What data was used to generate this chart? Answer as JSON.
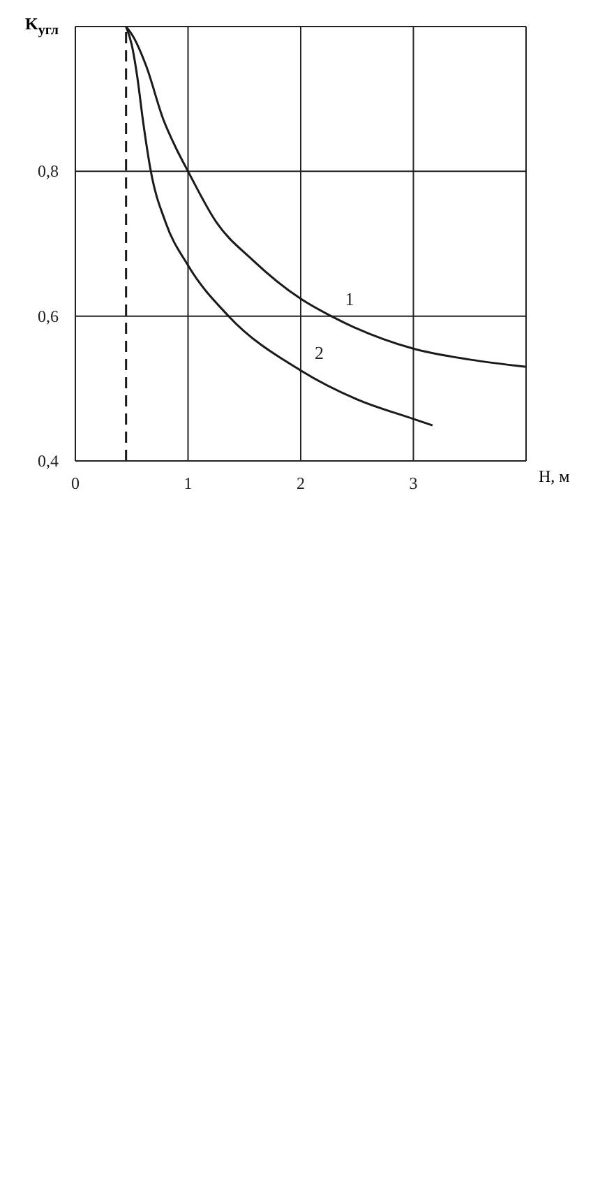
{
  "chart_data": {
    "type": "line",
    "xlabel": "H, м",
    "ylabel": "K$_{угл}$",
    "xlim": [
      0,
      4
    ],
    "xticks": [
      0,
      1,
      2,
      3
    ],
    "ylim": [
      0.4,
      1.0
    ],
    "yticks": [
      {
        "value": 0.4,
        "label": "0,4"
      },
      {
        "value": 0.6,
        "label": "0,6"
      },
      {
        "value": 0.8,
        "label": "0,8"
      }
    ],
    "grid": true,
    "legend": false,
    "marker": "none",
    "line_style": "solid",
    "series": [
      {
        "name": "1",
        "color": "#1a1a1a",
        "x": [
          0.45,
          0.51,
          0.63,
          0.78,
          0.9,
          1.0,
          1.25,
          1.57,
          2.0,
          2.27,
          3.0,
          3.5,
          4.0
        ],
        "values": [
          1.0,
          0.987,
          0.945,
          0.872,
          0.83,
          0.8,
          0.73,
          0.678,
          0.624,
          0.6,
          0.555,
          0.54,
          0.53
        ]
      },
      {
        "name": "2",
        "color": "#1a1a1a",
        "x": [
          0.45,
          0.5,
          0.55,
          0.6,
          0.67,
          0.8,
          1.0,
          1.36,
          2.0,
          2.5,
          3.0,
          3.17
        ],
        "values": [
          1.0,
          0.975,
          0.93,
          0.87,
          0.8,
          0.73,
          0.67,
          0.6,
          0.525,
          0.485,
          0.458,
          0.449
        ]
      }
    ],
    "ref_lines": [
      {
        "axis": "x",
        "value": 0.45,
        "line_style": "dashed",
        "color": "#1a1a1a"
      }
    ]
  }
}
